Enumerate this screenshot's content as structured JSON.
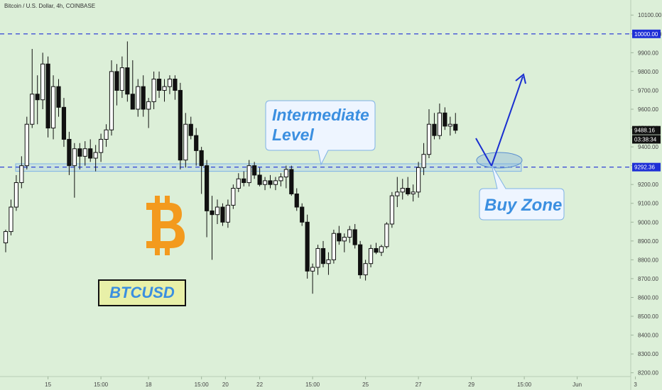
{
  "header": {
    "title": "Bitcoin / U.S. Dollar, 4h, COINBASE"
  },
  "annotations": {
    "intermediate_line1": "Intermediate",
    "intermediate_line2": "Level",
    "buy_zone": "Buy Zone",
    "symbol": "BTCUSD"
  },
  "price_tags": {
    "level_top": "10000.00",
    "current": "9488.16",
    "countdown": "03:38:34",
    "level_mid": "9292.36"
  },
  "colors": {
    "background": "#dcefd8",
    "candle": "#111111",
    "level_line": "#1e2fd6",
    "callout_text": "#3b8fe0",
    "arrow": "#1a2fd0",
    "btc_logo": "#f39a1e"
  },
  "chart_data": {
    "type": "candlestick",
    "title": "Bitcoin / U.S. Dollar, 4h, COINBASE",
    "ylim": [
      8180,
      10180
    ],
    "y_ticks": [
      8200,
      8300,
      8400,
      8500,
      8600,
      8700,
      8800,
      8900,
      9000,
      9100,
      9200,
      9300,
      9400,
      9500,
      9600,
      9700,
      9800,
      9900,
      10000,
      10100
    ],
    "y_tick_labels": [
      "8200.00",
      "8300.00",
      "8400.00",
      "8500.00",
      "8600.00",
      "8700.00",
      "8800.00",
      "8900.00",
      "9000.00",
      "9100.00",
      "9200.00",
      "9300.00",
      "9400.00",
      "9500.00",
      "9600.00",
      "9700.00",
      "9800.00",
      "9900.00",
      "10000.00",
      "10100.00"
    ],
    "x_tick_labels": [
      "15",
      "15:00",
      "18",
      "15:00",
      "20",
      "22",
      "15:00",
      "25",
      "27",
      "29",
      "15:00",
      "Jun",
      "3"
    ],
    "x_tick_index": [
      8,
      18,
      27,
      37,
      37.5,
      48,
      58,
      68,
      78,
      88,
      98,
      108,
      119
    ],
    "levels": [
      10000,
      9292.36
    ],
    "buy_zone_level": 9330,
    "intermediate_zone": [
      9270,
      9310
    ],
    "candles": [
      {
        "o": 8890,
        "h": 8960,
        "l": 8840,
        "c": 8950
      },
      {
        "o": 8950,
        "h": 9120,
        "l": 8930,
        "c": 9080
      },
      {
        "o": 9080,
        "h": 9250,
        "l": 9060,
        "c": 9210
      },
      {
        "o": 9210,
        "h": 9350,
        "l": 9180,
        "c": 9300
      },
      {
        "o": 9300,
        "h": 9560,
        "l": 9280,
        "c": 9520
      },
      {
        "o": 9520,
        "h": 9920,
        "l": 9500,
        "c": 9680
      },
      {
        "o": 9680,
        "h": 9780,
        "l": 9520,
        "c": 9650
      },
      {
        "o": 9650,
        "h": 9900,
        "l": 9600,
        "c": 9840
      },
      {
        "o": 9840,
        "h": 9880,
        "l": 9450,
        "c": 9500
      },
      {
        "o": 9500,
        "h": 9780,
        "l": 9440,
        "c": 9720
      },
      {
        "o": 9720,
        "h": 9760,
        "l": 9560,
        "c": 9610
      },
      {
        "o": 9610,
        "h": 9660,
        "l": 9400,
        "c": 9440
      },
      {
        "o": 9440,
        "h": 9480,
        "l": 9250,
        "c": 9300
      },
      {
        "o": 9300,
        "h": 9420,
        "l": 9130,
        "c": 9390
      },
      {
        "o": 9390,
        "h": 9420,
        "l": 9280,
        "c": 9350
      },
      {
        "o": 9350,
        "h": 9430,
        "l": 9300,
        "c": 9390
      },
      {
        "o": 9390,
        "h": 9440,
        "l": 9320,
        "c": 9340
      },
      {
        "o": 9340,
        "h": 9410,
        "l": 9270,
        "c": 9370
      },
      {
        "o": 9370,
        "h": 9470,
        "l": 9320,
        "c": 9440
      },
      {
        "o": 9440,
        "h": 9520,
        "l": 9400,
        "c": 9490
      },
      {
        "o": 9490,
        "h": 9860,
        "l": 9460,
        "c": 9800
      },
      {
        "o": 9800,
        "h": 9840,
        "l": 9620,
        "c": 9700
      },
      {
        "o": 9700,
        "h": 9880,
        "l": 9660,
        "c": 9820
      },
      {
        "o": 9820,
        "h": 9960,
        "l": 9640,
        "c": 9680
      },
      {
        "o": 9680,
        "h": 9860,
        "l": 9600,
        "c": 9600
      },
      {
        "o": 9600,
        "h": 9760,
        "l": 9560,
        "c": 9720
      },
      {
        "o": 9720,
        "h": 9780,
        "l": 9560,
        "c": 9600
      },
      {
        "o": 9600,
        "h": 9660,
        "l": 9500,
        "c": 9640
      },
      {
        "o": 9640,
        "h": 9800,
        "l": 9600,
        "c": 9760
      },
      {
        "o": 9760,
        "h": 9800,
        "l": 9660,
        "c": 9700
      },
      {
        "o": 9700,
        "h": 9760,
        "l": 9640,
        "c": 9720
      },
      {
        "o": 9720,
        "h": 9780,
        "l": 9680,
        "c": 9760
      },
      {
        "o": 9760,
        "h": 9780,
        "l": 9650,
        "c": 9700
      },
      {
        "o": 9700,
        "h": 9740,
        "l": 9280,
        "c": 9330
      },
      {
        "o": 9330,
        "h": 9580,
        "l": 9290,
        "c": 9520
      },
      {
        "o": 9520,
        "h": 9560,
        "l": 9440,
        "c": 9460
      },
      {
        "o": 9460,
        "h": 9500,
        "l": 9300,
        "c": 9380
      },
      {
        "o": 9380,
        "h": 9400,
        "l": 9150,
        "c": 9300
      },
      {
        "o": 9300,
        "h": 9330,
        "l": 8920,
        "c": 9060
      },
      {
        "o": 9060,
        "h": 9140,
        "l": 8800,
        "c": 9040
      },
      {
        "o": 9040,
        "h": 9120,
        "l": 8990,
        "c": 9080
      },
      {
        "o": 9080,
        "h": 9100,
        "l": 8980,
        "c": 9000
      },
      {
        "o": 9000,
        "h": 9120,
        "l": 8970,
        "c": 9090
      },
      {
        "o": 9090,
        "h": 9200,
        "l": 9070,
        "c": 9180
      },
      {
        "o": 9180,
        "h": 9260,
        "l": 9160,
        "c": 9230
      },
      {
        "o": 9230,
        "h": 9270,
        "l": 9190,
        "c": 9210
      },
      {
        "o": 9210,
        "h": 9330,
        "l": 9190,
        "c": 9300
      },
      {
        "o": 9300,
        "h": 9320,
        "l": 9230,
        "c": 9250
      },
      {
        "o": 9250,
        "h": 9290,
        "l": 9190,
        "c": 9200
      },
      {
        "o": 9200,
        "h": 9240,
        "l": 9170,
        "c": 9220
      },
      {
        "o": 9220,
        "h": 9250,
        "l": 9180,
        "c": 9200
      },
      {
        "o": 9200,
        "h": 9240,
        "l": 9170,
        "c": 9220
      },
      {
        "o": 9220,
        "h": 9260,
        "l": 9190,
        "c": 9240
      },
      {
        "o": 9240,
        "h": 9300,
        "l": 9180,
        "c": 9280
      },
      {
        "o": 9280,
        "h": 9300,
        "l": 9140,
        "c": 9150
      },
      {
        "o": 9150,
        "h": 9180,
        "l": 9060,
        "c": 9080
      },
      {
        "o": 9080,
        "h": 9100,
        "l": 8980,
        "c": 9000
      },
      {
        "o": 9000,
        "h": 9040,
        "l": 8700,
        "c": 8740
      },
      {
        "o": 8740,
        "h": 8780,
        "l": 8620,
        "c": 8760
      },
      {
        "o": 8760,
        "h": 8880,
        "l": 8720,
        "c": 8860
      },
      {
        "o": 8860,
        "h": 8900,
        "l": 8760,
        "c": 8780
      },
      {
        "o": 8780,
        "h": 8840,
        "l": 8720,
        "c": 8800
      },
      {
        "o": 8800,
        "h": 8960,
        "l": 8780,
        "c": 8940
      },
      {
        "o": 8940,
        "h": 8980,
        "l": 8880,
        "c": 8900
      },
      {
        "o": 8900,
        "h": 8940,
        "l": 8840,
        "c": 8920
      },
      {
        "o": 8920,
        "h": 8980,
        "l": 8890,
        "c": 8960
      },
      {
        "o": 8960,
        "h": 8990,
        "l": 8860,
        "c": 8880
      },
      {
        "o": 8880,
        "h": 8900,
        "l": 8700,
        "c": 8720
      },
      {
        "o": 8720,
        "h": 8800,
        "l": 8690,
        "c": 8780
      },
      {
        "o": 8780,
        "h": 8880,
        "l": 8760,
        "c": 8860
      },
      {
        "o": 8860,
        "h": 8890,
        "l": 8830,
        "c": 8840
      },
      {
        "o": 8840,
        "h": 8880,
        "l": 8820,
        "c": 8870
      },
      {
        "o": 8870,
        "h": 9000,
        "l": 8860,
        "c": 8990
      },
      {
        "o": 8990,
        "h": 9160,
        "l": 8970,
        "c": 9140
      },
      {
        "o": 9140,
        "h": 9240,
        "l": 9080,
        "c": 9160
      },
      {
        "o": 9160,
        "h": 9230,
        "l": 9120,
        "c": 9180
      },
      {
        "o": 9180,
        "h": 9240,
        "l": 9140,
        "c": 9150
      },
      {
        "o": 9150,
        "h": 9200,
        "l": 9110,
        "c": 9160
      },
      {
        "o": 9160,
        "h": 9320,
        "l": 9130,
        "c": 9290
      },
      {
        "o": 9290,
        "h": 9420,
        "l": 9250,
        "c": 9360
      },
      {
        "o": 9360,
        "h": 9600,
        "l": 9340,
        "c": 9520
      },
      {
        "o": 9520,
        "h": 9580,
        "l": 9440,
        "c": 9460
      },
      {
        "o": 9460,
        "h": 9630,
        "l": 9440,
        "c": 9580
      },
      {
        "o": 9580,
        "h": 9610,
        "l": 9490,
        "c": 9510
      },
      {
        "o": 9510,
        "h": 9560,
        "l": 9460,
        "c": 9520
      },
      {
        "o": 9520,
        "h": 9580,
        "l": 9470,
        "c": 9488
      }
    ]
  }
}
